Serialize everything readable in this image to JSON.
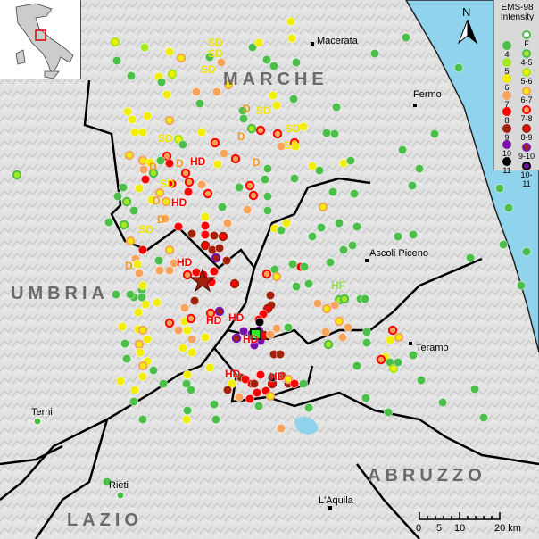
{
  "regions": {
    "marche": "MARCHE",
    "umbria": "UMBRIA",
    "lazio": "LAZIO",
    "abruzzo": "ABRUZZO"
  },
  "cities": [
    "Macerata",
    "Fermo",
    "Ascoli Piceno",
    "Teramo",
    "Terni",
    "Rieti",
    "L'Aquila"
  ],
  "damage_labels": [
    "SD",
    "SD",
    "SD",
    "D",
    "SD",
    "D",
    "SD",
    "SD",
    "SD",
    "D",
    "HD",
    "D",
    "D",
    "SD",
    "HD",
    "D",
    "D",
    "SD",
    "HD",
    "D",
    "HD",
    "HD",
    "HD",
    "HF",
    "HD",
    "HD"
  ],
  "north_arrow_label": "N",
  "legend": {
    "title_line1": "EMS-98",
    "title_line2": "Intensity",
    "left": [
      {
        "label": "4",
        "color": "#4cbf4a"
      },
      {
        "label": "5",
        "color": "#a6e81e"
      },
      {
        "label": "6",
        "color": "#f2ee00"
      },
      {
        "label": "7",
        "color": "#f7a35c"
      },
      {
        "label": "8",
        "color": "#ff0000"
      },
      {
        "label": "9",
        "color": "#a3200a"
      },
      {
        "label": "10",
        "color": "#7b0ead"
      },
      {
        "label": "11",
        "color": "#000000"
      }
    ],
    "right": [
      {
        "label": "F",
        "ring": "#4cbf4a",
        "fill": "#ffffff"
      },
      {
        "label": "4-5",
        "ring": "#4cbf4a",
        "fill": "#a6e81e"
      },
      {
        "label": "5-6",
        "ring": "#a6e81e",
        "fill": "#f2ee00"
      },
      {
        "label": "6-7",
        "ring": "#f7a35c",
        "fill": "#f2ee00"
      },
      {
        "label": "7-8",
        "ring": "#ff0000",
        "fill": "#f7a35c"
      },
      {
        "label": "8-9",
        "ring": "#a3200a",
        "fill": "#ff0000"
      },
      {
        "label": "9-10",
        "ring": "#7b0ead",
        "fill": "#a3200a"
      },
      {
        "label": "10-11",
        "ring": "#000000",
        "fill": "#7b0ead"
      }
    ]
  },
  "scale": {
    "ticks": [
      "0",
      "5",
      "10",
      "20 km"
    ]
  },
  "colors": {
    "sea": "#8fd3ec",
    "border": "#000000",
    "epicenter_star": "#a3200a",
    "square_marker": "#22ee22",
    "damage_text_SD": "#f2e600",
    "damage_text_D": "#f39a1e",
    "damage_text_HD": "#ff0000",
    "damage_text_HF": "#8be04a"
  }
}
